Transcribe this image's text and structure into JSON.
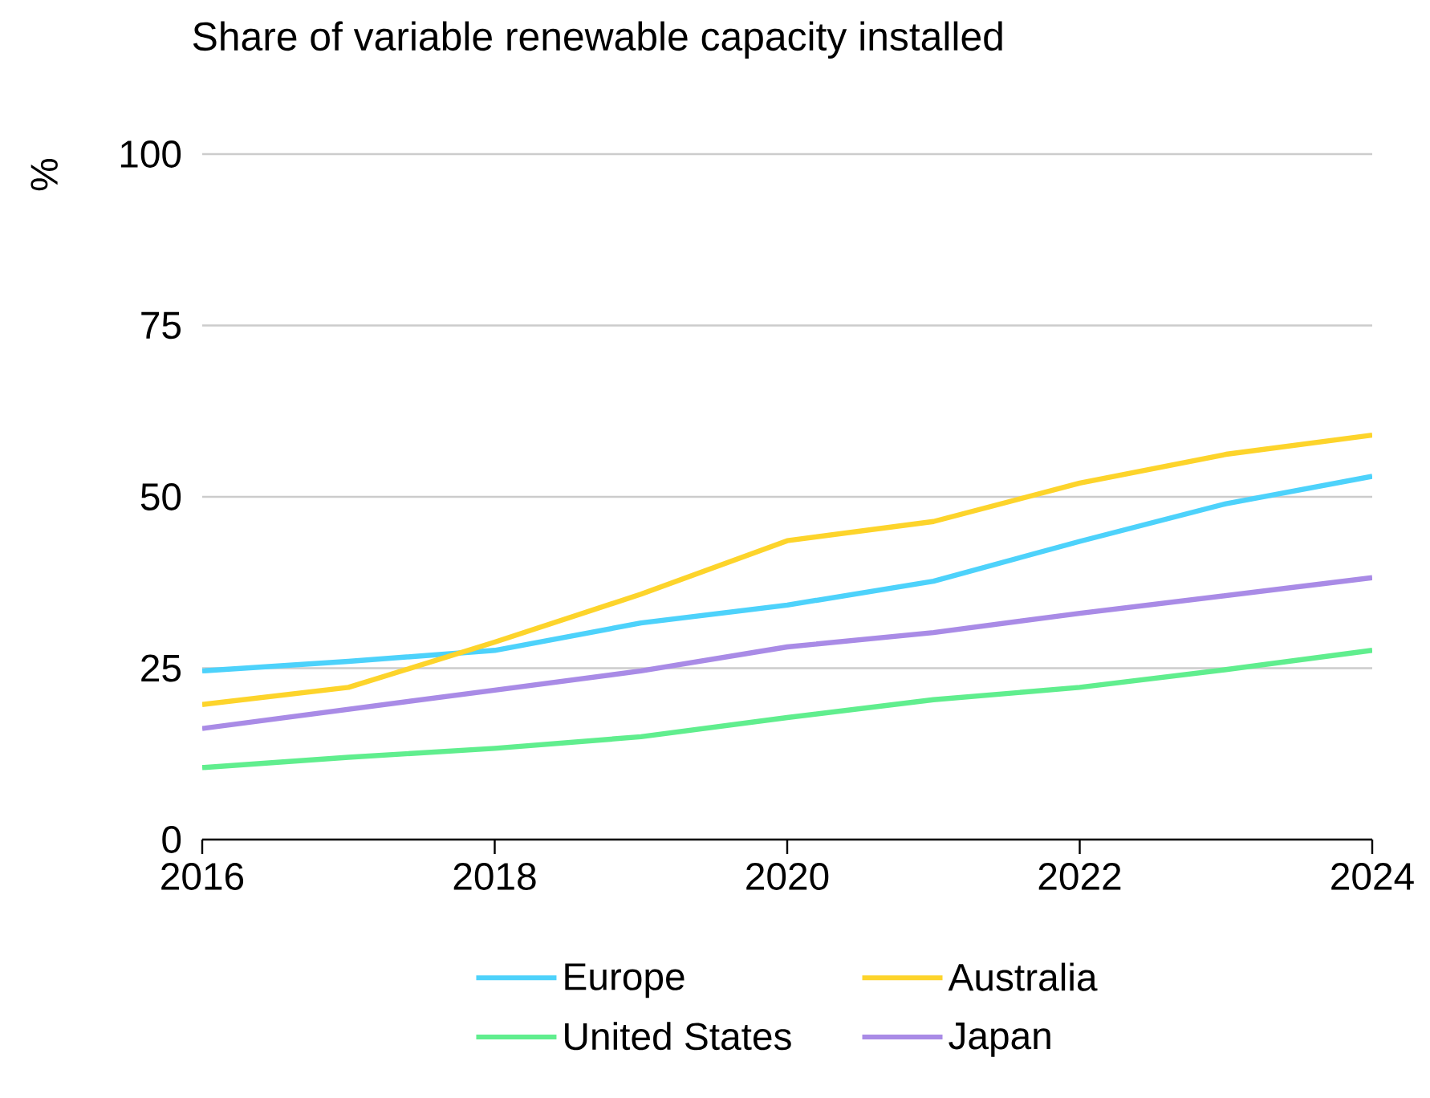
{
  "chart_data": {
    "type": "line",
    "title": "Share of variable renewable capacity installed",
    "ylabel": "%",
    "x": [
      2016,
      2017,
      2018,
      2019,
      2020,
      2021,
      2022,
      2023,
      2024
    ],
    "series": [
      {
        "name": "Europe",
        "color": "#4dd2fb",
        "values": [
          24.6,
          26,
          27.6,
          31.6,
          34.2,
          37.7,
          43.5,
          49,
          53
        ]
      },
      {
        "name": "Australia",
        "color": "#fdd42b",
        "values": [
          19.7,
          22.2,
          28.8,
          35.8,
          43.6,
          46.4,
          52,
          56.2,
          59
        ]
      },
      {
        "name": "United States",
        "color": "#60ee8e",
        "values": [
          10.5,
          12,
          13.3,
          15,
          17.8,
          20.4,
          22.2,
          24.8,
          27.6
        ]
      },
      {
        "name": "Japan",
        "color": "#a98be6",
        "values": [
          16.2,
          19,
          21.8,
          24.6,
          28.1,
          30.2,
          33,
          35.6,
          38.2
        ]
      }
    ],
    "xlim": [
      2016,
      2024
    ],
    "xticks": [
      2016,
      2018,
      2020,
      2022,
      2024
    ],
    "ylim": [
      0,
      100
    ],
    "yticks": [
      0,
      25,
      50,
      75,
      100
    ],
    "grid": "y",
    "legend": "bottom",
    "marker": "none",
    "line_style": "solid"
  }
}
